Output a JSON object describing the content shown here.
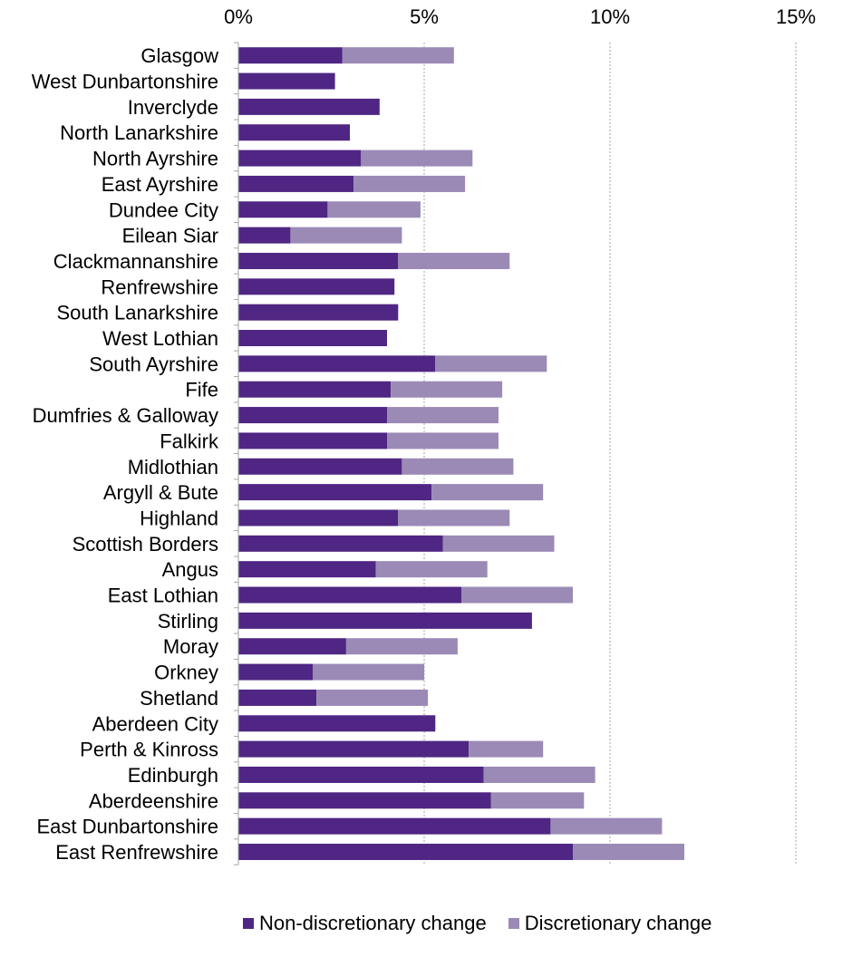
{
  "chart_data": {
    "type": "bar",
    "orientation": "horizontal",
    "stacked": true,
    "title": "",
    "xlabel": "",
    "ylabel": "",
    "xlim": [
      0,
      15
    ],
    "ticks": [
      0,
      5,
      10,
      15
    ],
    "tick_labels": [
      "0%",
      "5%",
      "10%",
      "15%"
    ],
    "grid": true,
    "legend_position": "bottom",
    "categories": [
      "Glasgow",
      "West Dunbartonshire",
      "Inverclyde",
      "North Lanarkshire",
      "North Ayrshire",
      "East Ayrshire",
      "Dundee City",
      "Eilean Siar",
      "Clackmannanshire",
      "Renfrewshire",
      "South Lanarkshire",
      "West Lothian",
      "South Ayrshire",
      "Fife",
      "Dumfries & Galloway",
      "Falkirk",
      "Midlothian",
      "Argyll & Bute",
      "Highland",
      "Scottish Borders",
      "Angus",
      "East Lothian",
      "Stirling",
      "Moray",
      "Orkney",
      "Shetland",
      "Aberdeen City",
      "Perth & Kinross",
      "Edinburgh",
      "Aberdeenshire",
      "East Dunbartonshire",
      "East Renfrewshire"
    ],
    "series": [
      {
        "name": "Non-discretionary change",
        "color": "#4F2683",
        "values": [
          2.8,
          2.6,
          3.8,
          3.0,
          3.3,
          3.1,
          2.4,
          1.4,
          4.3,
          4.2,
          4.3,
          4.0,
          5.3,
          4.1,
          4.0,
          4.0,
          4.4,
          5.2,
          4.3,
          5.5,
          3.7,
          6.0,
          7.9,
          2.9,
          2.0,
          2.1,
          5.3,
          6.2,
          6.6,
          6.8,
          8.4,
          9.0
        ]
      },
      {
        "name": "Discretionary change",
        "color": "#9B8AB6",
        "values": [
          3.0,
          0,
          0,
          0,
          3.0,
          3.0,
          2.5,
          3.0,
          3.0,
          0,
          0,
          0,
          3.0,
          3.0,
          3.0,
          3.0,
          3.0,
          3.0,
          3.0,
          3.0,
          3.0,
          3.0,
          0,
          3.0,
          3.0,
          3.0,
          0,
          2.0,
          3.0,
          2.5,
          3.0,
          3.0
        ]
      }
    ]
  }
}
